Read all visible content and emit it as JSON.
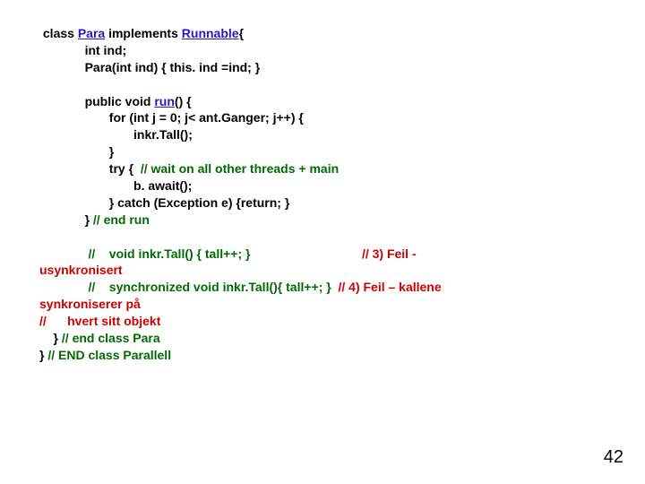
{
  "colors": {
    "background": "#ffffff",
    "text": "#000000",
    "link": "#2a15c9",
    "comment_green": "#006b00",
    "comment_red": "#cc0000"
  },
  "font": {
    "family": "Arial",
    "size_pt": 14,
    "weight": "bold",
    "pagenum_size_pt": 20
  },
  "lines": {
    "l1a": " class ",
    "l1b": "Para",
    "l1c": " implements ",
    "l1d": "Runnable",
    "l1e": "{",
    "l2": "             int ind;",
    "l3": "             Para(int ind) { this. ind =ind; }",
    "l4": "",
    "l5a": "             public void ",
    "l5b": "run",
    "l5c": "() {",
    "l6": "                    for (int j = 0; j< ant.Ganger; j++) {",
    "l7": "                           inkr.Tall();",
    "l8": "                    }",
    "l9a": "                    try {  ",
    "l9b": "// wait on all other threads + main",
    "l10": "                           b. await();",
    "l11": "                    } catch (Exception e) {return; }",
    "l12a": "             } ",
    "l12b": "// end run",
    "l13": "",
    "l14a": "              //    void inkr.Tall() { tall++; }                                ",
    "l14b": "// 3) Feil -",
    "l15": "usynkronisert",
    "l16a": "              //    synchronized void inkr.Tall(){ tall++; }  ",
    "l16b": "// 4) Feil – kallene",
    "l17": "synkroniserer på",
    "l18": "//      hvert sitt objekt",
    "l19a": "    } ",
    "l19b": "// end class Para",
    "l20a": "} ",
    "l20b": "// END class Parallell"
  },
  "page_number": "42"
}
